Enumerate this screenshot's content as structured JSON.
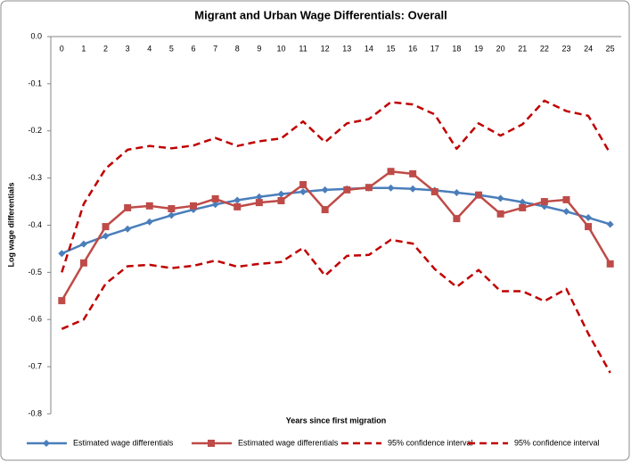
{
  "chart_data": {
    "type": "line",
    "title": "Migrant and Urban Wage Differentials: Overall",
    "x_label": "Years since first migration",
    "y_label": "Log wage differentials",
    "categories": [
      "0",
      "1",
      "2",
      "3",
      "4",
      "5",
      "6",
      "7",
      "8",
      "9",
      "10",
      "11",
      "12",
      "13",
      "14",
      "15",
      "16",
      "17",
      "18",
      "19",
      "20",
      "21",
      "22",
      "23",
      "24",
      "25"
    ],
    "ylim": [
      -0.8,
      0
    ],
    "yticks": [
      {
        "value": 0,
        "label": "0.0"
      },
      -0.1,
      -0.2,
      -0.3,
      -0.4,
      -0.5,
      -0.6,
      -0.7,
      -0.8
    ],
    "legend": "bottom",
    "series": [
      {
        "name": "Estimated wage differentials",
        "color": "#4a7ebb",
        "marker": "diamond",
        "dashed": false,
        "values": [
          -0.46,
          -0.44,
          -0.423,
          -0.408,
          -0.393,
          -0.379,
          -0.367,
          -0.356,
          -0.347,
          -0.34,
          -0.334,
          -0.329,
          -0.325,
          -0.323,
          -0.321,
          -0.321,
          -0.323,
          -0.326,
          -0.331,
          -0.336,
          -0.343,
          -0.351,
          -0.36,
          -0.371,
          -0.384,
          -0.398
        ]
      },
      {
        "name": "Estimated wage differentials",
        "color": "#be4b48",
        "marker": "square",
        "dashed": false,
        "values": [
          -0.56,
          -0.48,
          -0.403,
          -0.363,
          -0.359,
          -0.365,
          -0.359,
          -0.344,
          -0.361,
          -0.352,
          -0.348,
          -0.314,
          -0.367,
          -0.325,
          -0.32,
          -0.286,
          -0.291,
          -0.329,
          -0.386,
          -0.336,
          -0.376,
          -0.363,
          -0.35,
          -0.346,
          -0.403,
          -0.482
        ]
      },
      {
        "name": "95% confidence interval",
        "color": "#c00000",
        "marker": "none",
        "dashed": true,
        "values": [
          -0.5,
          -0.355,
          -0.28,
          -0.24,
          -0.232,
          -0.237,
          -0.231,
          -0.215,
          -0.232,
          -0.222,
          -0.216,
          -0.18,
          -0.224,
          -0.184,
          -0.175,
          -0.139,
          -0.144,
          -0.165,
          -0.238,
          -0.184,
          -0.21,
          -0.186,
          -0.136,
          -0.158,
          -0.168,
          -0.248
        ]
      },
      {
        "name": "95% confidence interval",
        "color": "#c00000",
        "marker": "none",
        "dashed": true,
        "values": [
          -0.62,
          -0.6,
          -0.524,
          -0.487,
          -0.484,
          -0.491,
          -0.486,
          -0.475,
          -0.488,
          -0.482,
          -0.478,
          -0.448,
          -0.507,
          -0.465,
          -0.463,
          -0.431,
          -0.439,
          -0.493,
          -0.531,
          -0.495,
          -0.54,
          -0.54,
          -0.561,
          -0.535,
          -0.63,
          -0.713
        ]
      }
    ]
  }
}
